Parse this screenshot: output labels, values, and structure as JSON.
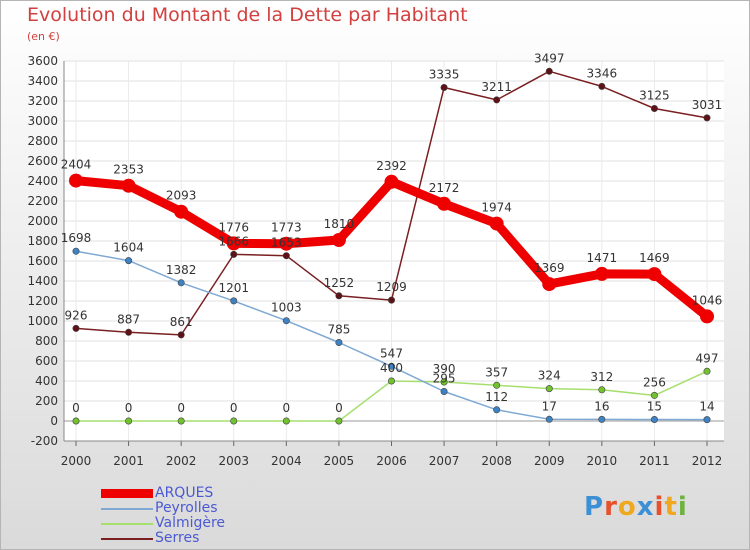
{
  "title": "Evolution du Montant de la Dette par Habitant",
  "subtitle": "(en €)",
  "logo_text": "Proxiti",
  "logo_colors": [
    "#3d8fd6",
    "#e8502b",
    "#f0a81e",
    "#3d8fd6",
    "#e8502b",
    "#f0a81e",
    "#6cb33f"
  ],
  "chart_data": {
    "type": "line",
    "categories": [
      "2000",
      "2001",
      "2002",
      "2003",
      "2004",
      "2005",
      "2006",
      "2007",
      "2008",
      "2009",
      "2010",
      "2011",
      "2012"
    ],
    "ylim": [
      -200,
      3600
    ],
    "yticks": [
      -200,
      0,
      200,
      400,
      600,
      800,
      1000,
      1200,
      1400,
      1600,
      1800,
      2000,
      2200,
      2400,
      2600,
      2800,
      3000,
      3200,
      3400,
      3600
    ],
    "grid": true,
    "legend_position": "bottom-left",
    "series": [
      {
        "name": "Serres",
        "color": "#7a1f22",
        "marker": "#5e1218",
        "values": [
          926,
          887,
          861,
          1666,
          1653,
          1252,
          1209,
          3335,
          3211,
          3497,
          3346,
          3125,
          3031
        ],
        "labels": [
          "926",
          "887",
          "861",
          "1666",
          "1653",
          "1252",
          "1209",
          "3335",
          "3211",
          "3497",
          "3346",
          "3125",
          "3031"
        ]
      },
      {
        "name": "Valmigère",
        "color": "#a6df6e",
        "marker": "#72c230",
        "values": [
          0,
          0,
          0,
          0,
          0,
          0,
          400,
          390,
          357,
          324,
          312,
          256,
          497
        ],
        "labels": [
          "0",
          "0",
          "0",
          "0",
          "0",
          "0",
          "400",
          "390",
          "357",
          "324",
          "312",
          "256",
          "497"
        ]
      },
      {
        "name": "Peyrolles",
        "color": "#7fa9d3",
        "marker": "#3f82c4",
        "values": [
          1698,
          1604,
          1382,
          1201,
          1003,
          785,
          547,
          295,
          112,
          17,
          16,
          15,
          14
        ],
        "labels": [
          "1698",
          "1604",
          "1382",
          "1201",
          "1003",
          "785",
          "547",
          "295",
          "112",
          "17",
          "16",
          "15",
          "14"
        ]
      },
      {
        "name": "ARQUES",
        "color": "#ee0000",
        "marker": "#ee0000",
        "values": [
          2404,
          2353,
          2093,
          1776,
          1773,
          1810,
          2392,
          2172,
          1974,
          1369,
          1471,
          1469,
          1046
        ],
        "labels": [
          "2404",
          "2353",
          "2093",
          "1776",
          "1773",
          "1810",
          "2392",
          "2172",
          "1974",
          "1369",
          "1471",
          "1469",
          "1046"
        ]
      }
    ],
    "legend": [
      {
        "name": "ARQUES",
        "color": "#ee0000"
      },
      {
        "name": "Peyrolles",
        "color": "#7fa9d3"
      },
      {
        "name": "Valmigère",
        "color": "#a6df6e"
      },
      {
        "name": "Serres",
        "color": "#7a1f22"
      }
    ]
  }
}
